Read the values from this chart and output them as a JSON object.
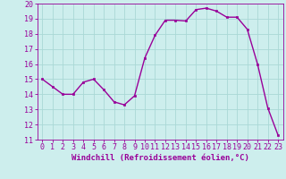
{
  "x": [
    0,
    1,
    2,
    3,
    4,
    5,
    6,
    7,
    8,
    9,
    10,
    11,
    12,
    13,
    14,
    15,
    16,
    17,
    18,
    19,
    20,
    21,
    22,
    23
  ],
  "y": [
    15.0,
    14.5,
    14.0,
    14.0,
    14.8,
    15.0,
    14.3,
    13.5,
    13.3,
    13.9,
    16.4,
    17.9,
    18.9,
    18.9,
    18.85,
    19.6,
    19.7,
    19.5,
    19.1,
    19.1,
    18.3,
    16.0,
    13.1,
    11.3
  ],
  "line_color": "#990099",
  "marker": "s",
  "marker_size": 2,
  "xlabel": "Windchill (Refroidissement éolien,°C)",
  "xlabel_fontsize": 6.5,
  "ylim": [
    11,
    20
  ],
  "xlim": [
    -0.5,
    23.5
  ],
  "yticks": [
    11,
    12,
    13,
    14,
    15,
    16,
    17,
    18,
    19,
    20
  ],
  "xticks": [
    0,
    1,
    2,
    3,
    4,
    5,
    6,
    7,
    8,
    9,
    10,
    11,
    12,
    13,
    14,
    15,
    16,
    17,
    18,
    19,
    20,
    21,
    22,
    23
  ],
  "bg_color": "#cdeeed",
  "grid_color": "#aad8d6",
  "tick_fontsize": 6,
  "linewidth": 1.0
}
